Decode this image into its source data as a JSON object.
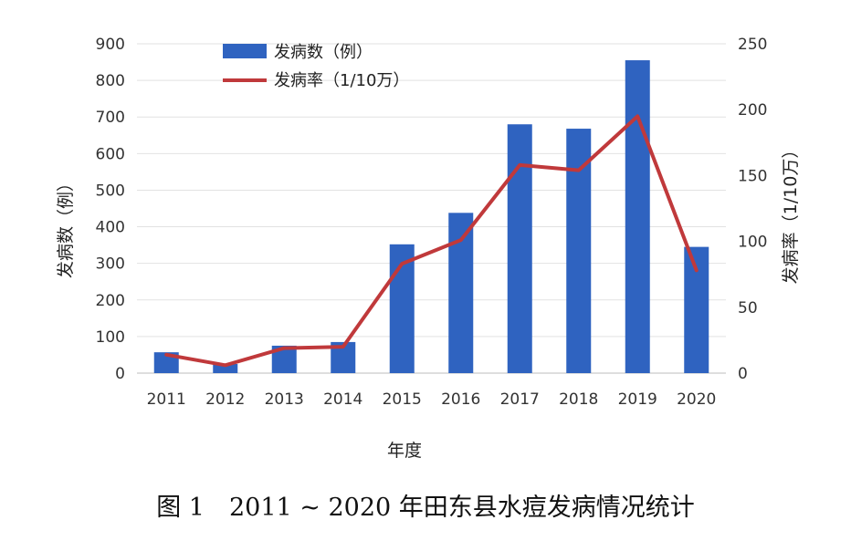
{
  "chart_data": {
    "type": "bar",
    "categories": [
      "2011",
      "2012",
      "2013",
      "2014",
      "2015",
      "2016",
      "2017",
      "2018",
      "2019",
      "2020"
    ],
    "series": [
      {
        "name": "发病数（例）",
        "type": "bar",
        "axis": "left",
        "color": "#2f63c0",
        "values": [
          57,
          25,
          75,
          85,
          352,
          438,
          680,
          668,
          855,
          345
        ]
      },
      {
        "name": "发病率（1/10万）",
        "type": "line",
        "axis": "right",
        "color": "#c0393b",
        "values": [
          14,
          6,
          19,
          20,
          83,
          101,
          158,
          154,
          195,
          78
        ]
      }
    ],
    "xlabel": "年度",
    "ylabel": "发病数（例）",
    "y2label": "发病率（1/10万）",
    "ylim": [
      0,
      900
    ],
    "y2lim": [
      0,
      250
    ],
    "yticks": [
      0,
      100,
      200,
      300,
      400,
      500,
      600,
      700,
      800,
      900
    ],
    "y2ticks": [
      0,
      50,
      100,
      150,
      200,
      250
    ],
    "grid": true,
    "legend": "top-left"
  },
  "caption": "图 1　2011 ~ 2020 年田东县水痘发病情况统计"
}
